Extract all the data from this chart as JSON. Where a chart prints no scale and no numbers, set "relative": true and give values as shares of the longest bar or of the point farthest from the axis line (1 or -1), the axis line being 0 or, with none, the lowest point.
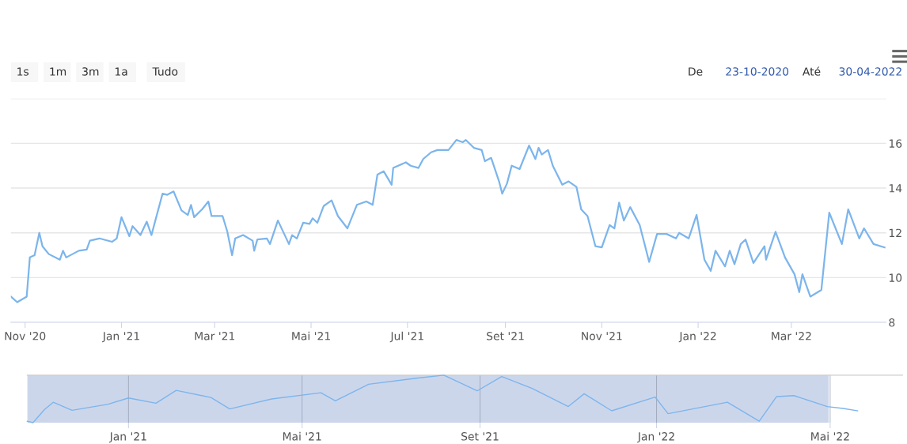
{
  "chart_data": [
    {
      "type": "line",
      "annotations": [
        "1s",
        "1m",
        "3m",
        "1a",
        "Tudo",
        "De",
        "23-10-2020",
        "Até",
        "30-04-2022"
      ],
      "x": [
        "2020-10-23",
        "2020-10-27",
        "2020-11-02",
        "2020-11-04",
        "2020-11-07",
        "2020-11-10",
        "2020-11-12",
        "2020-11-16",
        "2020-11-23",
        "2020-11-25",
        "2020-11-27",
        "2020-12-05",
        "2020-12-10",
        "2020-12-12",
        "2020-12-18",
        "2020-12-26",
        "2020-12-29",
        "2021-01-01",
        "2021-01-06",
        "2021-01-08",
        "2021-01-13",
        "2021-01-17",
        "2021-01-20",
        "2021-01-23",
        "2021-01-27",
        "2021-01-30",
        "2021-02-03",
        "2021-02-08",
        "2021-02-12",
        "2021-02-14",
        "2021-02-16",
        "2021-02-21",
        "2021-02-25",
        "2021-02-27",
        "2021-03-06",
        "2021-03-09",
        "2021-03-12",
        "2021-03-14",
        "2021-03-19",
        "2021-03-25",
        "2021-03-26",
        "2021-03-28",
        "2021-04-03",
        "2021-04-05",
        "2021-04-10",
        "2021-04-17",
        "2021-04-19",
        "2021-04-22",
        "2021-04-26",
        "2021-04-30",
        "2021-05-02",
        "2021-05-05",
        "2021-05-09",
        "2021-05-14",
        "2021-05-18",
        "2021-05-24",
        "2021-05-30",
        "2021-06-05",
        "2021-06-09",
        "2021-06-12",
        "2021-06-16",
        "2021-06-21",
        "2021-06-22",
        "2021-06-30",
        "2021-07-03",
        "2021-07-08",
        "2021-07-11",
        "2021-07-16",
        "2021-07-20",
        "2021-07-27",
        "2021-08-01",
        "2021-08-05",
        "2021-08-07",
        "2021-08-12",
        "2021-08-17",
        "2021-08-19",
        "2021-08-23",
        "2021-08-28",
        "2021-08-30",
        "2021-09-02",
        "2021-09-05",
        "2021-09-10",
        "2021-09-16",
        "2021-09-20",
        "2021-09-22",
        "2021-09-24",
        "2021-09-28",
        "2021-10-01",
        "2021-10-07",
        "2021-10-11",
        "2021-10-16",
        "2021-10-19",
        "2021-10-23",
        "2021-10-28",
        "2021-11-01",
        "2021-11-06",
        "2021-11-09",
        "2021-11-12",
        "2021-11-15",
        "2021-11-19",
        "2021-11-25",
        "2021-12-01",
        "2021-12-06",
        "2021-12-12",
        "2021-12-18",
        "2021-12-20",
        "2021-12-26",
        "2021-12-31",
        "2022-01-05",
        "2022-01-09",
        "2022-01-12",
        "2022-01-18",
        "2022-01-21",
        "2022-01-24",
        "2022-01-28",
        "2022-01-31",
        "2022-02-05",
        "2022-02-12",
        "2022-02-13",
        "2022-02-19",
        "2022-02-25",
        "2022-03-03",
        "2022-03-06",
        "2022-03-08",
        "2022-03-13",
        "2022-03-20",
        "2022-03-25",
        "2022-04-02",
        "2022-04-06",
        "2022-04-13",
        "2022-04-16",
        "2022-04-22",
        "2022-04-29"
      ],
      "series": [
        {
          "color": "#7cb5ec",
          "values": [
            9.15,
            8.9,
            9.15,
            10.9,
            11.0,
            12.0,
            11.4,
            11.05,
            10.8,
            11.2,
            10.9,
            11.2,
            11.25,
            11.65,
            11.75,
            11.6,
            11.75,
            12.7,
            11.85,
            12.3,
            11.9,
            12.5,
            11.9,
            12.7,
            13.75,
            13.7,
            13.85,
            13.0,
            12.8,
            13.25,
            12.7,
            13.05,
            13.4,
            12.75,
            12.75,
            12.05,
            11.0,
            11.75,
            11.9,
            11.65,
            11.2,
            11.7,
            11.75,
            11.5,
            12.55,
            11.5,
            11.9,
            11.75,
            12.45,
            12.4,
            12.65,
            12.45,
            13.2,
            13.45,
            12.75,
            12.2,
            13.25,
            13.4,
            13.25,
            14.6,
            14.75,
            14.15,
            14.9,
            15.15,
            15.0,
            14.9,
            15.3,
            15.6,
            15.7,
            15.7,
            16.15,
            16.05,
            16.15,
            15.8,
            15.7,
            15.2,
            15.35,
            14.3,
            13.75,
            14.2,
            15.0,
            14.85,
            15.9,
            15.3,
            15.8,
            15.5,
            15.7,
            15.0,
            14.15,
            14.3,
            14.05,
            13.05,
            12.75,
            11.4,
            11.35,
            12.35,
            12.2,
            13.35,
            12.55,
            13.15,
            12.35,
            10.7,
            11.95,
            11.95,
            11.75,
            12.0,
            11.75,
            12.8,
            10.8,
            10.3,
            11.2,
            10.5,
            11.2,
            10.6,
            11.5,
            11.7,
            10.65,
            11.4,
            10.8,
            12.05,
            10.9,
            10.15,
            9.35,
            10.15,
            9.15,
            9.45,
            12.9,
            11.5,
            13.05,
            11.75,
            12.2,
            11.5,
            11.35
          ]
        }
      ],
      "xlim": [
        "2020-10-23",
        "2022-04-30"
      ],
      "xticks": [
        {
          "value": "2020-11-01",
          "label": "Nov '20"
        },
        {
          "value": "2021-01-01",
          "label": "Jan '21"
        },
        {
          "value": "2021-03-01",
          "label": "Mar '21"
        },
        {
          "value": "2021-05-01",
          "label": "Mai '21"
        },
        {
          "value": "2021-07-01",
          "label": "Jul '21"
        },
        {
          "value": "2021-09-01",
          "label": "Set '21"
        },
        {
          "value": "2021-11-01",
          "label": "Nov '21"
        },
        {
          "value": "2022-01-01",
          "label": "Jan '22"
        },
        {
          "value": "2022-03-01",
          "label": "Mar '22"
        }
      ],
      "ylim": [
        8,
        18
      ],
      "yticks": [
        8,
        10,
        12,
        14,
        16,
        {
          "value": 18,
          "label": null
        }
      ],
      "grid": "y",
      "legend": false,
      "marker": "none",
      "line_style": "solid"
    },
    {
      "type": "line",
      "relative": true,
      "tick_labels": "x",
      "x": [
        "2020-10-23",
        "2020-10-27",
        "2020-11-04",
        "2020-11-10",
        "2020-11-23",
        "2020-12-18",
        "2021-01-01",
        "2021-01-20",
        "2021-02-03",
        "2021-02-27",
        "2021-03-12",
        "2021-04-10",
        "2021-05-14",
        "2021-05-24",
        "2021-06-16",
        "2021-07-20",
        "2021-08-07",
        "2021-08-30",
        "2021-09-16",
        "2021-10-07",
        "2021-11-01",
        "2021-11-12",
        "2021-12-01",
        "2021-12-31",
        "2022-01-09",
        "2022-02-19",
        "2022-03-13",
        "2022-03-25",
        "2022-04-06",
        "2022-04-29",
        "2022-05-10",
        "2022-05-20"
      ],
      "series": [
        {
          "color": "#7cb5ec",
          "values": [
            0.03,
            0.0,
            0.28,
            0.43,
            0.26,
            0.39,
            0.52,
            0.41,
            0.68,
            0.53,
            0.29,
            0.5,
            0.63,
            0.46,
            0.81,
            0.94,
            1.0,
            0.67,
            0.97,
            0.72,
            0.34,
            0.61,
            0.25,
            0.54,
            0.19,
            0.43,
            0.03,
            0.55,
            0.57,
            0.34,
            0.3,
            0.25
          ]
        }
      ],
      "xlim": [
        "2020-10-23",
        "2022-06-20"
      ],
      "xticks": [
        {
          "value": "2021-01-01",
          "label": "Jan '21"
        },
        {
          "value": "2021-05-01",
          "label": "Mai '21"
        },
        {
          "value": "2021-09-01",
          "label": "Set '21"
        },
        {
          "value": "2022-01-01",
          "label": "Jan '22"
        },
        {
          "value": "2022-05-01",
          "label": "Mai '22"
        }
      ],
      "bands": [
        {
          "axis": "x",
          "from": "2020-10-23",
          "to": "2022-04-30",
          "color": "#ccd6eb"
        }
      ],
      "grid": "x",
      "legend": false,
      "marker": "none",
      "line_style": "solid"
    }
  ]
}
